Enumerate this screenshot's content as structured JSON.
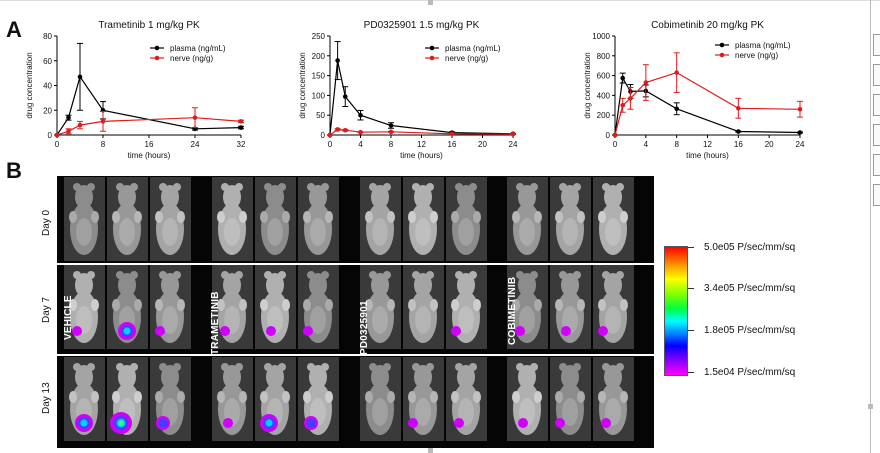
{
  "panels": {
    "a": "A",
    "b": "B"
  },
  "charts": [
    {
      "type": "line",
      "title": "Trametinib 1 mg/kg PK",
      "xlabel": "time (hours)",
      "ylabel": "drug concentration",
      "xlim": [
        0,
        32
      ],
      "ylim": [
        0,
        80
      ],
      "xticks": [
        0,
        8,
        16,
        24,
        32
      ],
      "yticks": [
        0,
        20,
        40,
        60,
        80
      ],
      "legend_position": "top-right",
      "series": [
        {
          "name": "plasma (ng/mL)",
          "color": "#000000",
          "x": [
            0,
            2,
            4,
            8,
            24,
            32
          ],
          "y": [
            0,
            14,
            47,
            20,
            5,
            6
          ],
          "err": [
            0,
            2,
            27,
            7,
            1,
            1
          ]
        },
        {
          "name": "nerve (ng/g)",
          "color": "#e01b1b",
          "x": [
            0,
            2,
            4,
            8,
            24,
            32
          ],
          "y": [
            0,
            3,
            8,
            11,
            14,
            11
          ],
          "err": [
            0,
            2,
            3,
            8,
            8,
            1
          ]
        }
      ]
    },
    {
      "type": "line",
      "title": "PD0325901 1.5 mg/kg PK",
      "xlabel": "time (hours)",
      "ylabel": "drug concentration",
      "xlim": [
        0,
        24
      ],
      "ylim": [
        0,
        250
      ],
      "xticks": [
        0,
        4,
        8,
        12,
        16,
        20,
        24
      ],
      "yticks": [
        0,
        50,
        100,
        150,
        200,
        250
      ],
      "legend_position": "top-right",
      "series": [
        {
          "name": "plasma (ng/mL)",
          "color": "#000000",
          "x": [
            0,
            1,
            2,
            4,
            8,
            16,
            24
          ],
          "y": [
            0,
            188,
            97,
            50,
            24,
            6,
            3
          ],
          "err": [
            0,
            48,
            25,
            12,
            7,
            2,
            1
          ]
        },
        {
          "name": "nerve (ng/g)",
          "color": "#e01b1b",
          "x": [
            0,
            1,
            2,
            4,
            8,
            16,
            24
          ],
          "y": [
            0,
            14,
            12,
            7,
            8,
            3,
            2
          ],
          "err": [
            0,
            2,
            2,
            1,
            1,
            1,
            1
          ]
        }
      ]
    },
    {
      "type": "line",
      "title": "Cobimetinib 20 mg/kg PK",
      "xlabel": "time (hours)",
      "ylabel": "drug concentration",
      "xlim": [
        0,
        24
      ],
      "ylim": [
        0,
        1000
      ],
      "xticks": [
        0,
        4,
        8,
        12,
        16,
        20,
        24
      ],
      "yticks": [
        0,
        200,
        400,
        600,
        800,
        1000
      ],
      "legend_position": "top-right",
      "series": [
        {
          "name": "plasma (ng/mL)",
          "color": "#000000",
          "x": [
            0,
            1,
            2,
            4,
            8,
            16,
            24
          ],
          "y": [
            0,
            575,
            440,
            445,
            265,
            35,
            25
          ],
          "err": [
            0,
            50,
            70,
            60,
            60,
            5,
            5
          ]
        },
        {
          "name": "nerve (ng/g)",
          "color": "#e01b1b",
          "x": [
            0,
            1,
            2,
            4,
            8,
            16,
            24
          ],
          "y": [
            0,
            300,
            370,
            530,
            630,
            270,
            260
          ],
          "err": [
            0,
            70,
            110,
            180,
            200,
            100,
            80
          ]
        }
      ]
    }
  ],
  "imaging": {
    "day_labels": [
      "Day 0",
      "Day 7",
      "Day 13"
    ],
    "groups": [
      "VEHICLE",
      "TRAMETINIB",
      "PD0325901",
      "COBIMETINIB"
    ],
    "colorbar": {
      "labels": [
        "5.0e05 P/sec/mm/sq",
        "3.4e05 P/sec/mm/sq",
        "1.8e05 P/sec/mm/sq",
        "1.5e04 P/sec/mm/sq"
      ],
      "colors": [
        "#ff0000",
        "#ffff00",
        "#00ff40",
        "#00ffff",
        "#0000ff",
        "#ff00ff"
      ]
    },
    "signal": [
      [
        [
          0,
          0,
          0
        ],
        [
          0,
          0,
          0
        ],
        [
          0,
          0,
          0
        ],
        [
          0,
          0,
          0
        ]
      ],
      [
        [
          1,
          3,
          1
        ],
        [
          1,
          1,
          1
        ],
        [
          0,
          0,
          1
        ],
        [
          1,
          1,
          1
        ]
      ],
      [
        [
          3,
          4,
          2
        ],
        [
          1,
          3,
          2
        ],
        [
          0,
          1,
          1
        ],
        [
          1,
          1,
          1
        ]
      ]
    ]
  }
}
